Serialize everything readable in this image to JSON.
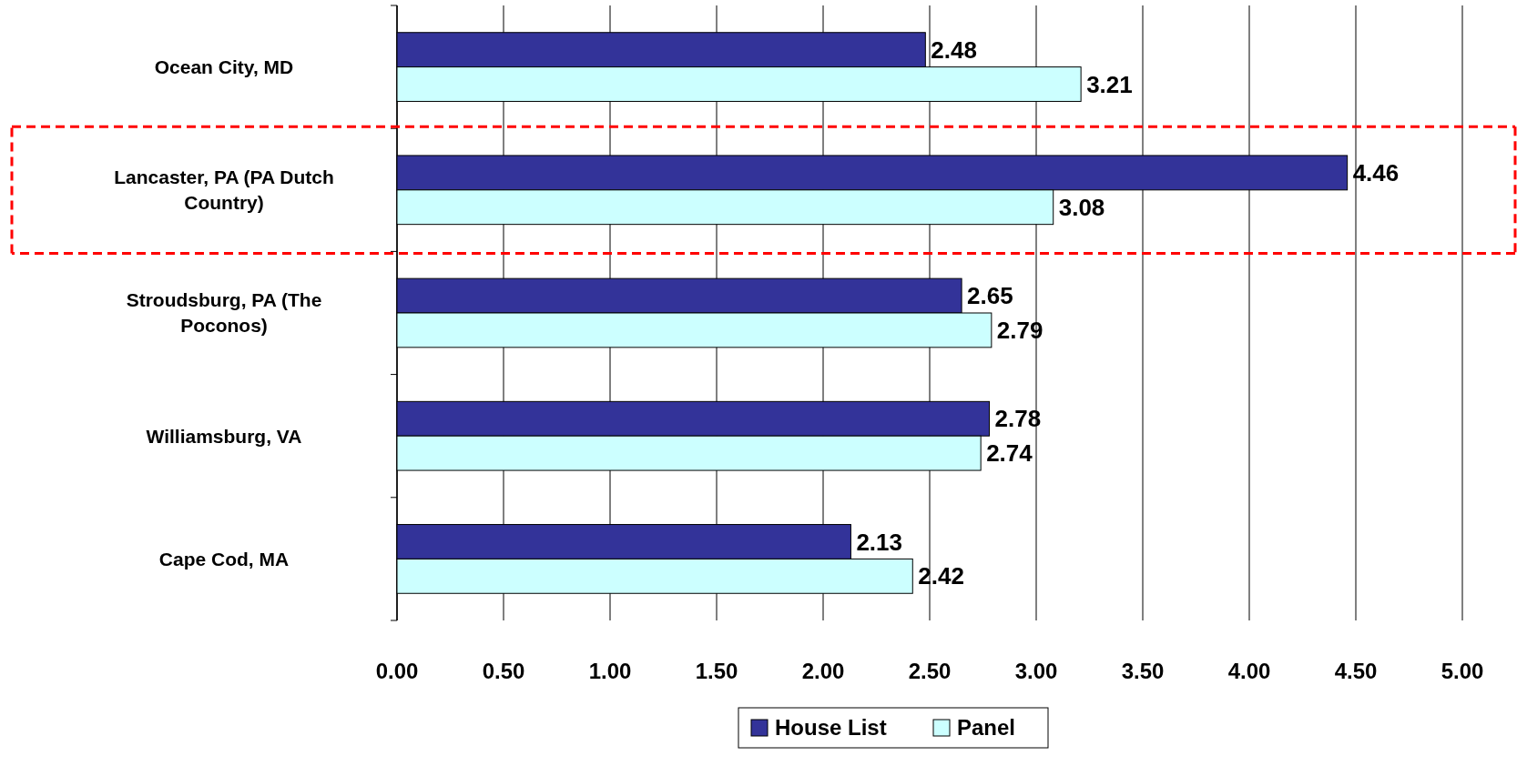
{
  "chart_data": {
    "type": "bar",
    "orientation": "horizontal",
    "categories": [
      "Ocean City, MD",
      "Lancaster, PA (PA Dutch Country)",
      "Stroudsburg, PA (The Poconos)",
      "Williamsburg, VA",
      "Cape Cod, MA"
    ],
    "series": [
      {
        "name": "House List",
        "color": "#333399",
        "values": [
          2.48,
          4.46,
          2.65,
          2.78,
          2.13
        ]
      },
      {
        "name": "Panel",
        "color": "#ccffff",
        "values": [
          3.21,
          3.08,
          2.79,
          2.74,
          2.42
        ]
      }
    ],
    "xlim": [
      0,
      5
    ],
    "xticks": [
      {
        "value": 0,
        "label": "0.00"
      },
      {
        "value": 0.5,
        "label": "0.50"
      },
      {
        "value": 1,
        "label": "1.00"
      },
      {
        "value": 1.5,
        "label": "1.50"
      },
      {
        "value": 2,
        "label": "2.00"
      },
      {
        "value": 2.5,
        "label": "2.50"
      },
      {
        "value": 3,
        "label": "3.00"
      },
      {
        "value": 3.5,
        "label": "3.50"
      },
      {
        "value": 4,
        "label": "4.00"
      },
      {
        "value": 4.5,
        "label": "4.50"
      },
      {
        "value": 5,
        "label": "5.00"
      }
    ],
    "grid": "x",
    "legend": "bottom",
    "data_labels": true
  }
}
